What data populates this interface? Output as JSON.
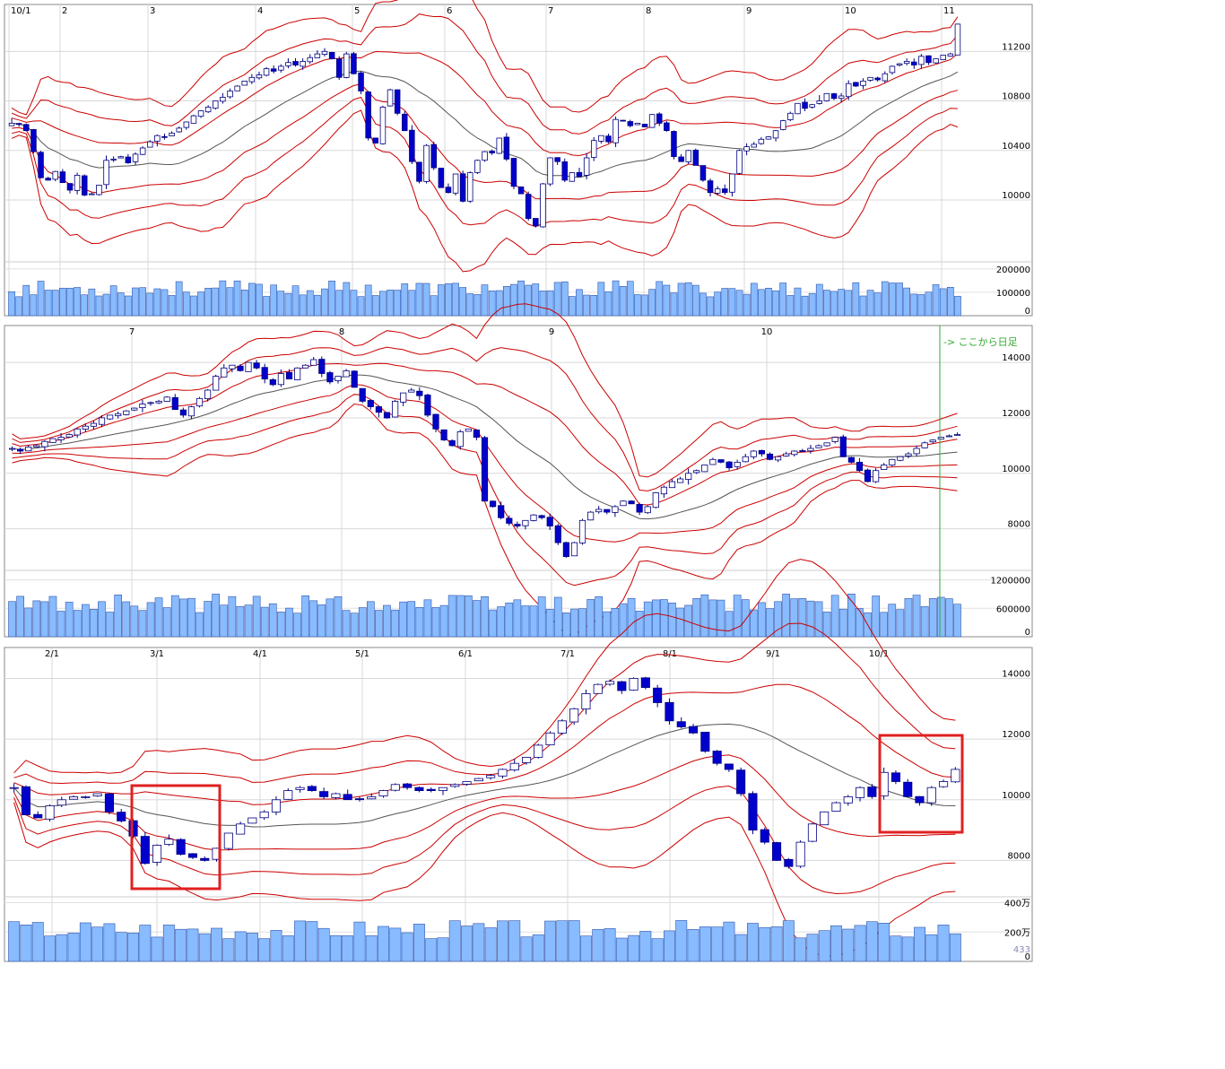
{
  "chart_data": [
    {
      "type": "candlestick",
      "id": "daily",
      "x_ticks": [
        "10/1",
        "2",
        "3",
        "4",
        "5",
        "6",
        "7",
        "8",
        "9",
        "10",
        "11"
      ],
      "y_ticks": [
        "11200",
        "10800",
        "10400",
        "10000"
      ],
      "y_ticks_values": [
        11200,
        10800,
        10400,
        10000
      ],
      "ylim": [
        9500,
        11550
      ],
      "volume_ticks": [
        "200000",
        "100000",
        "0"
      ],
      "volume_ticks_values": [
        200000,
        100000,
        0
      ],
      "volume_max": 230000,
      "close": [
        10620,
        10610,
        10560,
        10390,
        10180,
        10160,
        10230,
        10140,
        10080,
        10200,
        10040,
        10050,
        10120,
        10320,
        10330,
        10350,
        10300,
        10370,
        10420,
        10470,
        10520,
        10510,
        10540,
        10580,
        10630,
        10680,
        10720,
        10750,
        10800,
        10830,
        10880,
        10920,
        10960,
        10990,
        11010,
        11060,
        11040,
        11080,
        11110,
        11090,
        11120,
        11150,
        11180,
        11200,
        11140,
        10990,
        11180,
        11020,
        10880,
        10500,
        10460,
        10750,
        10890,
        10700,
        10560,
        10310,
        10150,
        10440,
        10260,
        10100,
        10060,
        10210,
        9990,
        10220,
        10320,
        10390,
        10380,
        10500,
        10330,
        10110,
        10050,
        9850,
        9790,
        10130,
        10340,
        10310,
        10160,
        10220,
        10190,
        10340,
        10480,
        10520,
        10470,
        10650,
        10640,
        10600,
        10620,
        10590,
        10690,
        10620,
        10560,
        10350,
        10310,
        10400,
        10280,
        10160,
        10060,
        10090,
        10060,
        10210,
        10400,
        10430,
        10450,
        10490,
        10510,
        10560,
        10640,
        10700,
        10780,
        10740,
        10770,
        10800,
        10860,
        10820,
        10840,
        10940,
        10920,
        10960,
        10990,
        10970,
        11020,
        11080,
        11100,
        11120,
        11090,
        11160,
        11110,
        11140,
        11170,
        11180,
        11420
      ]
    },
    {
      "type": "candlestick",
      "id": "weekly",
      "x_ticks": [
        "7",
        "8",
        "9",
        "10"
      ],
      "y_ticks": [
        "14000",
        "12000",
        "10000",
        "8000"
      ],
      "y_ticks_values": [
        14000,
        12000,
        10000,
        8000
      ],
      "ylim": [
        6500,
        15200
      ],
      "volume_ticks": [
        "1200000",
        "600000",
        "0"
      ],
      "volume_ticks_values": [
        1200000,
        600000,
        0
      ],
      "volume_max": 1400000,
      "note": "-> ここから日足",
      "close": [
        10900,
        10800,
        10950,
        11000,
        11150,
        11250,
        11300,
        11400,
        11600,
        11700,
        11800,
        12000,
        12100,
        12150,
        12250,
        12350,
        12500,
        12550,
        12600,
        12750,
        12300,
        12100,
        12400,
        12700,
        13000,
        13500,
        13800,
        13900,
        13700,
        14000,
        13800,
        13400,
        13200,
        13600,
        13400,
        13800,
        13900,
        14100,
        13600,
        13300,
        13500,
        13700,
        13100,
        12600,
        12400,
        12200,
        12000,
        12600,
        12900,
        13000,
        12800,
        12100,
        11600,
        11200,
        11000,
        11500,
        11600,
        11300,
        9000,
        8800,
        8400,
        8200,
        8100,
        8300,
        8500,
        8400,
        8100,
        7500,
        7000,
        7500,
        8300,
        8600,
        8700,
        8600,
        8800,
        9000,
        8900,
        8600,
        8800,
        9300,
        9500,
        9700,
        9800,
        10000,
        10100,
        10300,
        10500,
        10400,
        10200,
        10400,
        10600,
        10800,
        10700,
        10500,
        10600,
        10700,
        10800,
        10800,
        10900,
        11000,
        11100,
        11300,
        10600,
        10400,
        10100,
        9700,
        10100,
        10300,
        10500,
        10600,
        10700,
        10900,
        11100,
        11200,
        11300,
        11350,
        11400
      ]
    },
    {
      "type": "candlestick",
      "id": "monthly",
      "x_ticks": [
        "2/1",
        "3/1",
        "4/1",
        "5/1",
        "6/1",
        "7/1",
        "8/1",
        "9/1",
        "10/1"
      ],
      "y_ticks": [
        "14000",
        "12000",
        "10000",
        "8000"
      ],
      "y_ticks_values": [
        14000,
        12000,
        10000,
        8000
      ],
      "ylim": [
        6800,
        14900
      ],
      "volume_ticks": [
        "400万",
        "200万",
        "433",
        "0"
      ],
      "volume_ticks_values": [
        4000000,
        2000000,
        433,
        0
      ],
      "volume_max": 4400000,
      "close": [
        10400,
        9500,
        9400,
        9800,
        10000,
        10100,
        10100,
        10200,
        9600,
        9300,
        8800,
        7900,
        8500,
        8700,
        8200,
        8100,
        8000,
        8400,
        8900,
        9200,
        9400,
        9600,
        10000,
        10300,
        10400,
        10300,
        10100,
        10200,
        10000,
        10000,
        10100,
        10300,
        10500,
        10400,
        10300,
        10300,
        10400,
        10500,
        10600,
        10700,
        10800,
        11000,
        11200,
        11400,
        11800,
        12200,
        12600,
        13000,
        13500,
        13800,
        13900,
        13600,
        14000,
        13700,
        13200,
        12600,
        12400,
        12200,
        11600,
        11200,
        11000,
        10200,
        9000,
        8600,
        8000,
        7800,
        8600,
        9200,
        9600,
        9900,
        10100,
        10400,
        10100,
        10900,
        10600,
        10100,
        9900,
        10400,
        10600,
        11000
      ]
    }
  ]
}
